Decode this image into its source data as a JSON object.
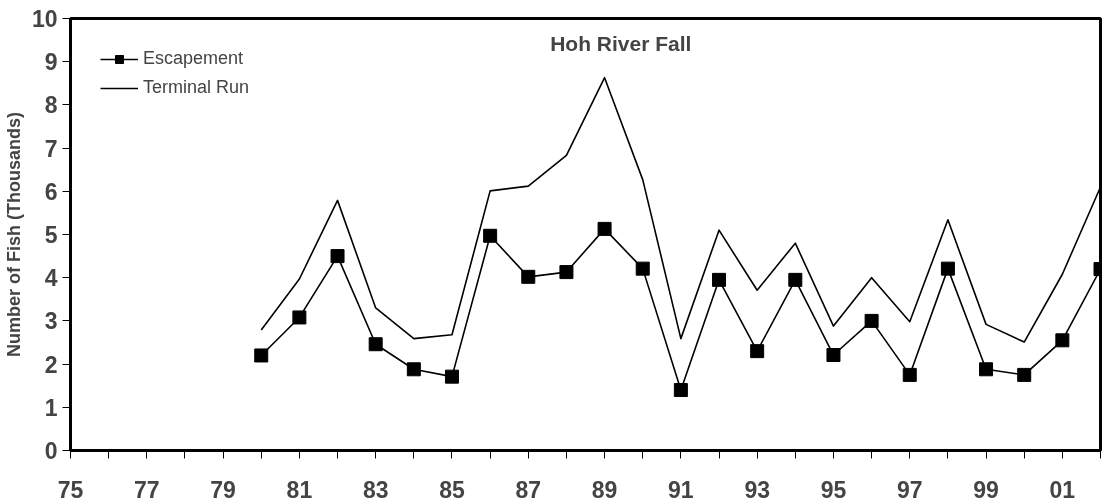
{
  "chart_data": {
    "type": "line",
    "title": "Hoh River  Fall",
    "ylabel": "Number of Fish (Thousands)",
    "x": [
      1980,
      1981,
      1982,
      1983,
      1984,
      1985,
      1986,
      1987,
      1988,
      1989,
      1990,
      1991,
      1992,
      1993,
      1994,
      1995,
      1996,
      1997,
      1998,
      1999,
      2000,
      2001,
      2002
    ],
    "series": [
      {
        "name": "Escapement",
        "color": "#000000",
        "marker": "square",
        "values": [
          2.2,
          3.08,
          4.5,
          2.46,
          1.88,
          1.71,
          4.97,
          4.02,
          4.13,
          5.13,
          4.21,
          1.4,
          3.95,
          2.3,
          3.95,
          2.21,
          3.0,
          1.75,
          4.21,
          1.88,
          1.75,
          2.55,
          4.2
        ]
      },
      {
        "name": "Terminal Run",
        "color": "#000000",
        "marker": "none",
        "values": [
          2.79,
          3.97,
          5.79,
          3.3,
          2.59,
          2.68,
          6.01,
          6.12,
          6.83,
          8.63,
          6.27,
          2.59,
          5.1,
          3.71,
          4.8,
          2.88,
          4.0,
          2.98,
          5.34,
          2.92,
          2.51,
          4.08,
          6.1
        ]
      }
    ],
    "xlim": [
      1975,
      2002
    ],
    "ylim": [
      0,
      10
    ],
    "xticks": [
      {
        "value": 1975,
        "label": "75"
      },
      {
        "value": 1976,
        "label": null
      },
      {
        "value": 1977,
        "label": "77"
      },
      {
        "value": 1978,
        "label": null
      },
      {
        "value": 1979,
        "label": "79"
      },
      {
        "value": 1980,
        "label": null
      },
      {
        "value": 1981,
        "label": "81"
      },
      {
        "value": 1982,
        "label": null
      },
      {
        "value": 1983,
        "label": "83"
      },
      {
        "value": 1984,
        "label": null
      },
      {
        "value": 1985,
        "label": "85"
      },
      {
        "value": 1986,
        "label": null
      },
      {
        "value": 1987,
        "label": "87"
      },
      {
        "value": 1988,
        "label": null
      },
      {
        "value": 1989,
        "label": "89"
      },
      {
        "value": 1990,
        "label": null
      },
      {
        "value": 1991,
        "label": "91"
      },
      {
        "value": 1992,
        "label": null
      },
      {
        "value": 1993,
        "label": "93"
      },
      {
        "value": 1994,
        "label": null
      },
      {
        "value": 1995,
        "label": "95"
      },
      {
        "value": 1996,
        "label": null
      },
      {
        "value": 1997,
        "label": "97"
      },
      {
        "value": 1998,
        "label": null
      },
      {
        "value": 1999,
        "label": "99"
      },
      {
        "value": 2000,
        "label": null
      },
      {
        "value": 2001,
        "label": "01"
      },
      {
        "value": 2002,
        "label": null
      }
    ],
    "yticks": [
      0,
      1,
      2,
      3,
      4,
      5,
      6,
      7,
      8,
      9,
      10
    ],
    "grid": false,
    "legend": "top left",
    "line_style": "solid"
  }
}
